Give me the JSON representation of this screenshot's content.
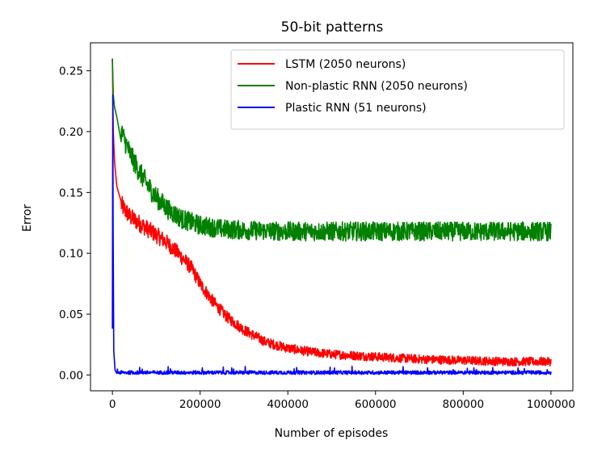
{
  "chart_data": {
    "type": "line",
    "title": "50-bit patterns",
    "xlabel": "Number of episodes",
    "ylabel": "Error",
    "xlim": [
      -50000,
      1050000
    ],
    "ylim": [
      -0.013,
      0.273
    ],
    "xticks": [
      0,
      200000,
      400000,
      600000,
      800000,
      1000000
    ],
    "xtick_labels": [
      "0",
      "200000",
      "400000",
      "600000",
      "800000",
      "1000000"
    ],
    "yticks": [
      0.0,
      0.05,
      0.1,
      0.15,
      0.2,
      0.25
    ],
    "ytick_labels": [
      "0.00",
      "0.05",
      "0.10",
      "0.15",
      "0.20",
      "0.25"
    ],
    "grid": false,
    "legend_position": "top-right",
    "series": [
      {
        "name": "LSTM (2050 neurons)",
        "color": "#ff0000",
        "x": [
          0,
          2000,
          5000,
          10000,
          20000,
          40000,
          60000,
          80000,
          100000,
          120000,
          150000,
          180000,
          200000,
          230000,
          260000,
          300000,
          350000,
          400000,
          450000,
          500000,
          600000,
          700000,
          800000,
          900000,
          1000000
        ],
        "y": [
          0.26,
          0.2,
          0.175,
          0.155,
          0.14,
          0.13,
          0.125,
          0.12,
          0.115,
          0.11,
          0.1,
          0.088,
          0.075,
          0.06,
          0.048,
          0.037,
          0.027,
          0.022,
          0.019,
          0.017,
          0.015,
          0.013,
          0.012,
          0.011,
          0.011
        ],
        "noise": 0.008
      },
      {
        "name": "Non-plastic RNN (2050 neurons)",
        "color": "#008000",
        "x": [
          0,
          2000,
          5000,
          10000,
          20000,
          40000,
          60000,
          80000,
          100000,
          130000,
          160000,
          200000,
          250000,
          300000,
          400000,
          500000,
          600000,
          700000,
          800000,
          900000,
          1000000
        ],
        "y": [
          0.26,
          0.23,
          0.22,
          0.212,
          0.2,
          0.182,
          0.168,
          0.156,
          0.146,
          0.135,
          0.128,
          0.123,
          0.12,
          0.119,
          0.118,
          0.118,
          0.118,
          0.118,
          0.118,
          0.118,
          0.118
        ],
        "noise": 0.009
      },
      {
        "name": "Plastic RNN (51 neurons)",
        "color": "#0000ff",
        "x": [
          0,
          800,
          1500,
          3000,
          6000,
          10000,
          50000,
          200000,
          400000,
          600000,
          800000,
          1000000
        ],
        "y": [
          0.038,
          0.23,
          0.12,
          0.02,
          0.004,
          0.002,
          0.002,
          0.002,
          0.002,
          0.002,
          0.002,
          0.002
        ],
        "noise": 0.0015
      }
    ]
  }
}
